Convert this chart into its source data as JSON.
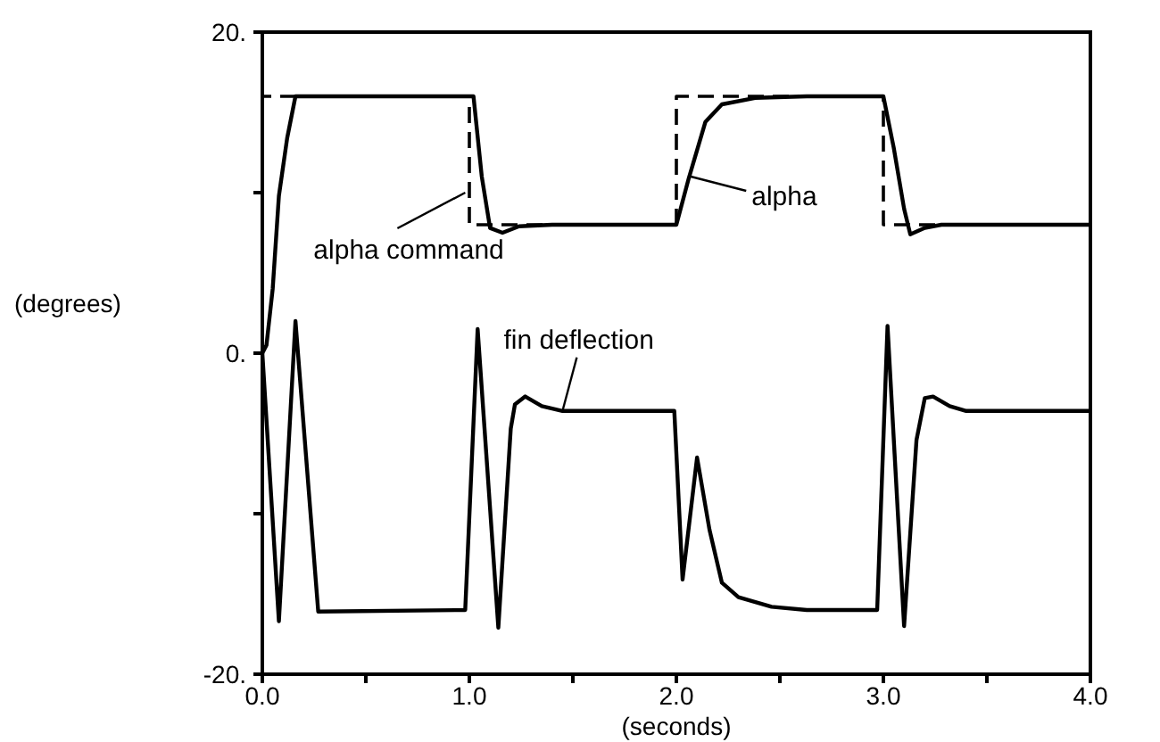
{
  "chart_data": {
    "type": "line",
    "xlabel": "(seconds)",
    "ylabel": "(degrees)",
    "xlim": [
      0,
      4
    ],
    "ylim": [
      -20,
      20
    ],
    "xticks": [
      {
        "value": 0,
        "label": "0.0"
      },
      {
        "value": 0.5,
        "label": null
      },
      {
        "value": 1,
        "label": "1.0"
      },
      {
        "value": 1.5,
        "label": null
      },
      {
        "value": 2,
        "label": "2.0"
      },
      {
        "value": 2.5,
        "label": null
      },
      {
        "value": 3,
        "label": "3.0"
      },
      {
        "value": 3.5,
        "label": null
      },
      {
        "value": 4,
        "label": "4.0"
      }
    ],
    "yticks": [
      {
        "value": 20,
        "label": "20."
      },
      {
        "value": 10,
        "label": null
      },
      {
        "value": 0,
        "label": "0."
      },
      {
        "value": -10,
        "label": null
      },
      {
        "value": -20,
        "label": "-20."
      }
    ],
    "marker": "none",
    "series": [
      {
        "color": "#000000",
        "line_style": "dashed",
        "x": [
          0,
          0,
          1,
          1,
          2,
          2,
          3,
          3,
          4
        ],
        "values": [
          0,
          16,
          16,
          8,
          8,
          16,
          16,
          8,
          8
        ]
      },
      {
        "color": "#000000",
        "line_style": "solid",
        "x": [
          0,
          0.02,
          0.05,
          0.08,
          0.12,
          0.16,
          0.2,
          1.0,
          1.02,
          1.06,
          1.1,
          1.16,
          1.24,
          1.4,
          2.0,
          2.06,
          2.14,
          2.22,
          2.38,
          2.63,
          3.0,
          3.05,
          3.1,
          3.13,
          3.2,
          3.28,
          4.0
        ],
        "values": [
          0,
          0.5,
          4,
          9.8,
          13.4,
          16,
          16,
          16,
          16,
          11,
          7.8,
          7.5,
          7.9,
          8,
          8,
          10.9,
          14.4,
          15.5,
          15.9,
          16,
          16,
          12.8,
          9,
          7.4,
          7.8,
          8,
          8
        ]
      },
      {
        "color": "#000000",
        "line_style": "solid",
        "x": [
          0,
          0.08,
          0.16,
          0.27,
          0.98,
          1.04,
          1.14,
          1.2,
          1.22,
          1.27,
          1.35,
          1.45,
          1.99,
          2.03,
          2.1,
          2.16,
          2.22,
          2.3,
          2.46,
          2.63,
          2.97,
          3.02,
          3.1,
          3.16,
          3.2,
          3.24,
          3.32,
          3.4,
          4.0
        ],
        "values": [
          0,
          -16.7,
          2,
          -16.1,
          -16,
          1.5,
          -17.1,
          -4.7,
          -3.2,
          -2.7,
          -3.3,
          -3.6,
          -3.6,
          -14.1,
          -6.5,
          -11,
          -14.3,
          -15.2,
          -15.8,
          -16,
          -16,
          1.7,
          -17,
          -5.4,
          -2.8,
          -2.7,
          -3.3,
          -3.6,
          -3.6
        ]
      }
    ],
    "annotations": [
      {
        "text": "alpha command",
        "x": 0.98,
        "y": 10
      },
      {
        "text": "alpha",
        "x": 2.07,
        "y": 11
      },
      {
        "text": "fin deflection",
        "x": 1.45,
        "y": -3.6
      }
    ]
  }
}
